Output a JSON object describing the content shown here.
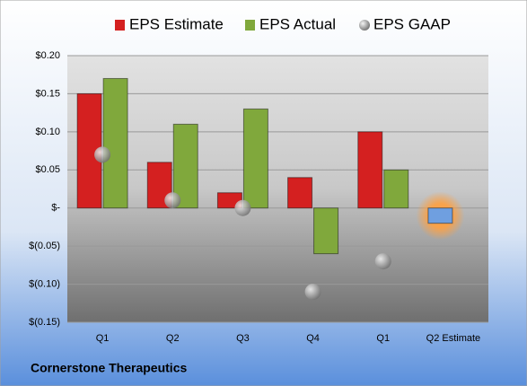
{
  "chart_data": {
    "type": "bar",
    "footer": "Cornerstone Therapeutics",
    "categories": [
      "Q1",
      "Q2",
      "Q3",
      "Q4",
      "Q1",
      "Q2 Estimate"
    ],
    "series": [
      {
        "name": "EPS Estimate",
        "color": "#d42020",
        "colors": [
          "#d42020",
          "#d42020",
          "#d42020",
          "#d42020",
          "#d42020",
          "#6f9fe0"
        ],
        "values": [
          0.15,
          0.06,
          0.02,
          0.04,
          0.1,
          -0.02
        ]
      },
      {
        "name": "EPS Actual",
        "color": "#80a83c",
        "values": [
          0.17,
          0.11,
          0.13,
          -0.06,
          0.05,
          null
        ]
      },
      {
        "name": "EPS GAAP",
        "color": "#9a9a9a",
        "kind": "dot",
        "values": [
          0.07,
          0.01,
          0.0,
          -0.11,
          -0.07,
          null
        ]
      }
    ],
    "ylim": [
      -0.15,
      0.2
    ],
    "yticks": [
      {
        "value": 0.2,
        "label": "$0.20"
      },
      {
        "value": 0.15,
        "label": "$0.15"
      },
      {
        "value": 0.1,
        "label": "$0.10"
      },
      {
        "value": 0.05,
        "label": "$0.05"
      },
      {
        "value": 0,
        "label": "$-"
      },
      {
        "value": -0.05,
        "label": "$(0.05)"
      },
      {
        "value": -0.1,
        "label": "$(0.10)"
      },
      {
        "value": -0.15,
        "label": "$(0.15)"
      }
    ],
    "grid": true
  }
}
